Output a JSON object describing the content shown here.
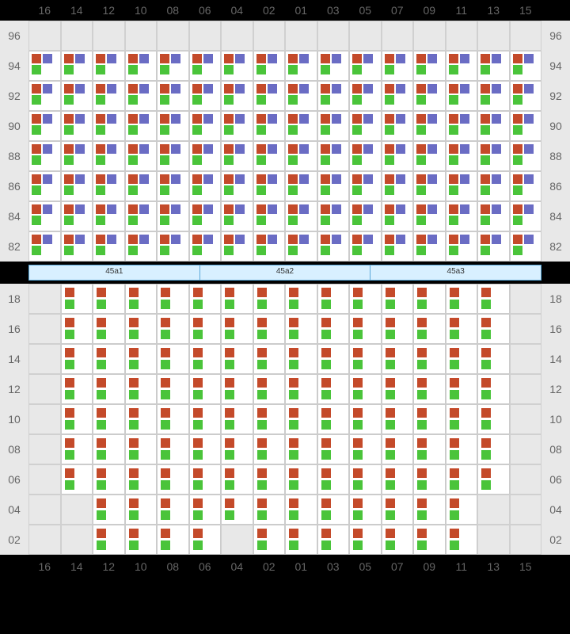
{
  "layout": {
    "columns": [
      "16",
      "14",
      "12",
      "10",
      "08",
      "06",
      "04",
      "02",
      "01",
      "03",
      "05",
      "07",
      "09",
      "11",
      "13",
      "15"
    ],
    "upper": {
      "row_labels": [
        "96",
        "94",
        "92",
        "90",
        "88",
        "86",
        "84",
        "82"
      ],
      "cell_colors": {
        "r": "#c44a2a",
        "p": "#6a6cc4",
        "g": "#4ac43a"
      },
      "row_label_bg": "#e8e8e8",
      "cell_bg": "#ffffff",
      "cell_border": "#cccccc",
      "empty_rows": [
        "96"
      ],
      "pattern": "rpg_all_cols"
    },
    "divider": {
      "segments": [
        "45a1",
        "45a2",
        "45a3"
      ],
      "bg": "#d8f0ff",
      "border": "#5aa8d8"
    },
    "lower": {
      "row_labels": [
        "18",
        "16",
        "14",
        "12",
        "10",
        "08",
        "06",
        "04",
        "02"
      ],
      "cell_colors": {
        "r": "#c44a2a",
        "g": "#4ac43a"
      },
      "pattern": "rg_stack",
      "empty_cells": {
        "18": [
          "16",
          "15"
        ],
        "16": [
          "16",
          "15"
        ],
        "14": [
          "16",
          "15"
        ],
        "12": [
          "16",
          "15"
        ],
        "10": [
          "16",
          "15"
        ],
        "08": [
          "16",
          "15"
        ],
        "06": [
          "16",
          "15"
        ],
        "04": [
          "16",
          "14",
          "13",
          "15"
        ],
        "02": [
          "16",
          "14",
          "04",
          "13",
          "15"
        ]
      }
    },
    "label_color": "#666666",
    "label_fontsize": 14,
    "background": "#000000"
  }
}
